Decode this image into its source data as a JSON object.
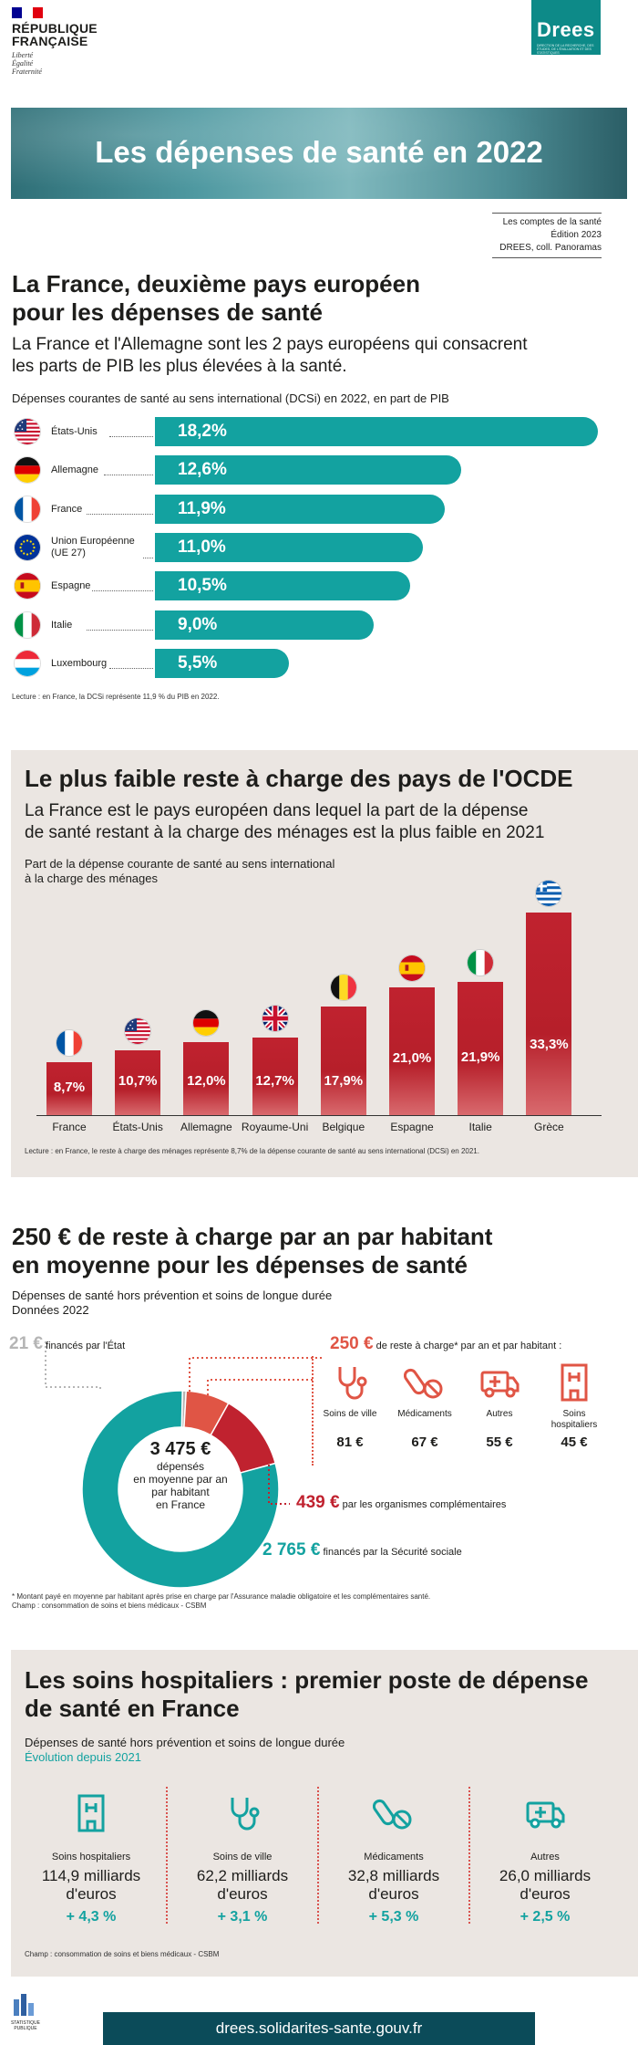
{
  "header": {
    "republic_line1": "RÉPUBLIQUE",
    "republic_line2": "FRANÇAISE",
    "motto": [
      "Liberté",
      "Égalité",
      "Fraternité"
    ],
    "drees_name": "Drees",
    "drees_sub": "DIRECTION DE LA RECHERCHE, DES ÉTUDES, DE L'ÉVALUATION ET DES STATISTIQUES",
    "colors": {
      "blue": "#000091",
      "red": "#e1000f",
      "teal": "#13a2a0"
    }
  },
  "banner": {
    "title": "Les dépenses de santé en 2022"
  },
  "source": {
    "line1": "Les comptes de la santé",
    "line2": "Édition 2023",
    "line3": "DREES, coll. Panoramas"
  },
  "section1": {
    "title_line1": "La France, deuxième pays européen",
    "title_line2": "pour les dépenses de santé",
    "lead_line1": "La France et l'Allemagne sont les 2 pays européens qui consacrent",
    "lead_line2": "les parts de PIB les plus élevées à la santé.",
    "chart_caption": "Dépenses courantes de santé au sens international (DCSi) en 2022, en part de PIB",
    "note": "Lecture : en France, la DCSi représente 11,9 % du PIB en 2022."
  },
  "chart_data": [
    {
      "type": "bar",
      "orientation": "horizontal",
      "title": "Dépenses courantes de santé au sens international (DCSi) en 2022, en part de PIB",
      "categories": [
        "États-Unis",
        "Allemagne",
        "France",
        "Union Européenne (UE 27)",
        "Espagne",
        "Italie",
        "Luxembourg"
      ],
      "values": [
        18.2,
        12.6,
        11.9,
        11.0,
        10.5,
        9.0,
        5.5
      ],
      "value_labels": [
        "18,2%",
        "12,6%",
        "11,9%",
        "11,0%",
        "10,5%",
        "9,0%",
        "5,5%"
      ],
      "color": "#13a2a0"
    },
    {
      "type": "bar",
      "orientation": "vertical",
      "title": "Part de la dépense courante de santé au sens international à la charge des ménages",
      "categories": [
        "France",
        "États-Unis",
        "Allemagne",
        "Royaume-Uni",
        "Belgique",
        "Espagne",
        "Italie",
        "Grèce"
      ],
      "values": [
        8.7,
        10.7,
        12.0,
        12.7,
        17.9,
        21.0,
        21.9,
        33.3
      ],
      "value_labels": [
        "8,7%",
        "10,7%",
        "12,0%",
        "12,7%",
        "17,9%",
        "21,0%",
        "21,9%",
        "33,3%"
      ],
      "color": "#c0222f"
    },
    {
      "type": "pie",
      "title": "Dépenses de santé hors prévention et soins de longue durée",
      "labels": [
        "financés par la Sécurité sociale",
        "par les organismes complémentaires",
        "de reste à charge",
        "financés par l'État"
      ],
      "values": [
        2765,
        439,
        250,
        21
      ],
      "colors": [
        "#13a2a0",
        "#c0222f",
        "#e05545",
        "#b5b5b5"
      ]
    }
  ],
  "hbar_labels": [
    {
      "l1": "États-Unis",
      "l2": ""
    },
    {
      "l1": "Allemagne",
      "l2": ""
    },
    {
      "l1": "France",
      "l2": ""
    },
    {
      "l1": "Union Européenne",
      "l2": "(UE 27)"
    },
    {
      "l1": "Espagne",
      "l2": ""
    },
    {
      "l1": "Italie",
      "l2": ""
    },
    {
      "l1": "Luxembourg",
      "l2": ""
    }
  ],
  "section2": {
    "title": "Le plus faible reste à charge des pays de l'OCDE",
    "lead_line1": "La France est le pays européen dans lequel la part de la dépense",
    "lead_line2": "de santé restant à la charge des ménages est la plus faible en 2021",
    "caption_line1": "Part de la dépense courante de santé au sens international",
    "caption_line2": "à la charge des ménages",
    "note": "Lecture : en France, le reste à charge des ménages représente 8,7% de la dépense courante de santé au sens international (DCSi) en 2021."
  },
  "section3": {
    "title_line1": "250 € de reste à charge par an par habitant",
    "title_line2": "en moyenne pour les dépenses de santé",
    "sub_line1": "Dépenses de santé hors prévention et soins de longue durée",
    "sub_line2": "Données 2022",
    "state_amount": "21 €",
    "state_label": "financés par l'État",
    "rac_amount": "250 €",
    "rac_label": "de reste à charge* par an et par habitant :",
    "center_amount": "3 475 €",
    "center_l1": "dépensés",
    "center_l2": "en moyenne par an",
    "center_l3": "par habitant",
    "center_l4": "en France",
    "oc_amount": "439 €",
    "oc_label": "par les organismes complémentaires",
    "ss_amount": "2 765 €",
    "ss_label": "financés par la Sécurité sociale",
    "services": [
      {
        "name": "Soins de ville",
        "value": "81 €",
        "icon": "stethoscope-icon"
      },
      {
        "name": "Médicaments",
        "value": "67 €",
        "icon": "pills-icon"
      },
      {
        "name": "Autres",
        "value": "55 €",
        "icon": "ambulance-icon"
      },
      {
        "name": "Soins hospitaliers",
        "value": "45 €",
        "icon": "hospital-icon"
      }
    ],
    "note1": "* Montant payé en moyenne par habitant après prise en charge par l'Assurance maladie obligatoire et les complémentaires santé.",
    "note2": "Champ : consommation de soins et biens médicaux - CSBM"
  },
  "section4": {
    "title_line1": "Les soins hospitaliers : premier poste de dépense",
    "title_line2": "de santé en France",
    "sub": "Dépenses de santé hors prévention et soins de longue durée",
    "sub2": "Évolution depuis 2021",
    "cards": [
      {
        "name": "Soins hospitaliers",
        "v1": "114,9 milliards",
        "v2": "d'euros",
        "evol": "+ 4,3 %",
        "icon": "hospital-icon"
      },
      {
        "name": "Soins de ville",
        "v1": "62,2 milliards",
        "v2": "d'euros",
        "evol": "+ 3,1 %",
        "icon": "stethoscope-icon"
      },
      {
        "name": "Médicaments",
        "v1": "32,8 milliards",
        "v2": "d'euros",
        "evol": "+ 5,3 %",
        "icon": "pills-icon"
      },
      {
        "name": "Autres",
        "v1": "26,0 milliards",
        "v2": "d'euros",
        "evol": "+ 2,5 %",
        "icon": "ambulance-icon"
      }
    ],
    "note": "Champ : consommation de soins et biens médicaux - CSBM"
  },
  "footer": {
    "url": "drees.solidarites-sante.gouv.fr",
    "ssp_l1": "STATISTIQUE",
    "ssp_l2": "PUBLIQUE"
  }
}
